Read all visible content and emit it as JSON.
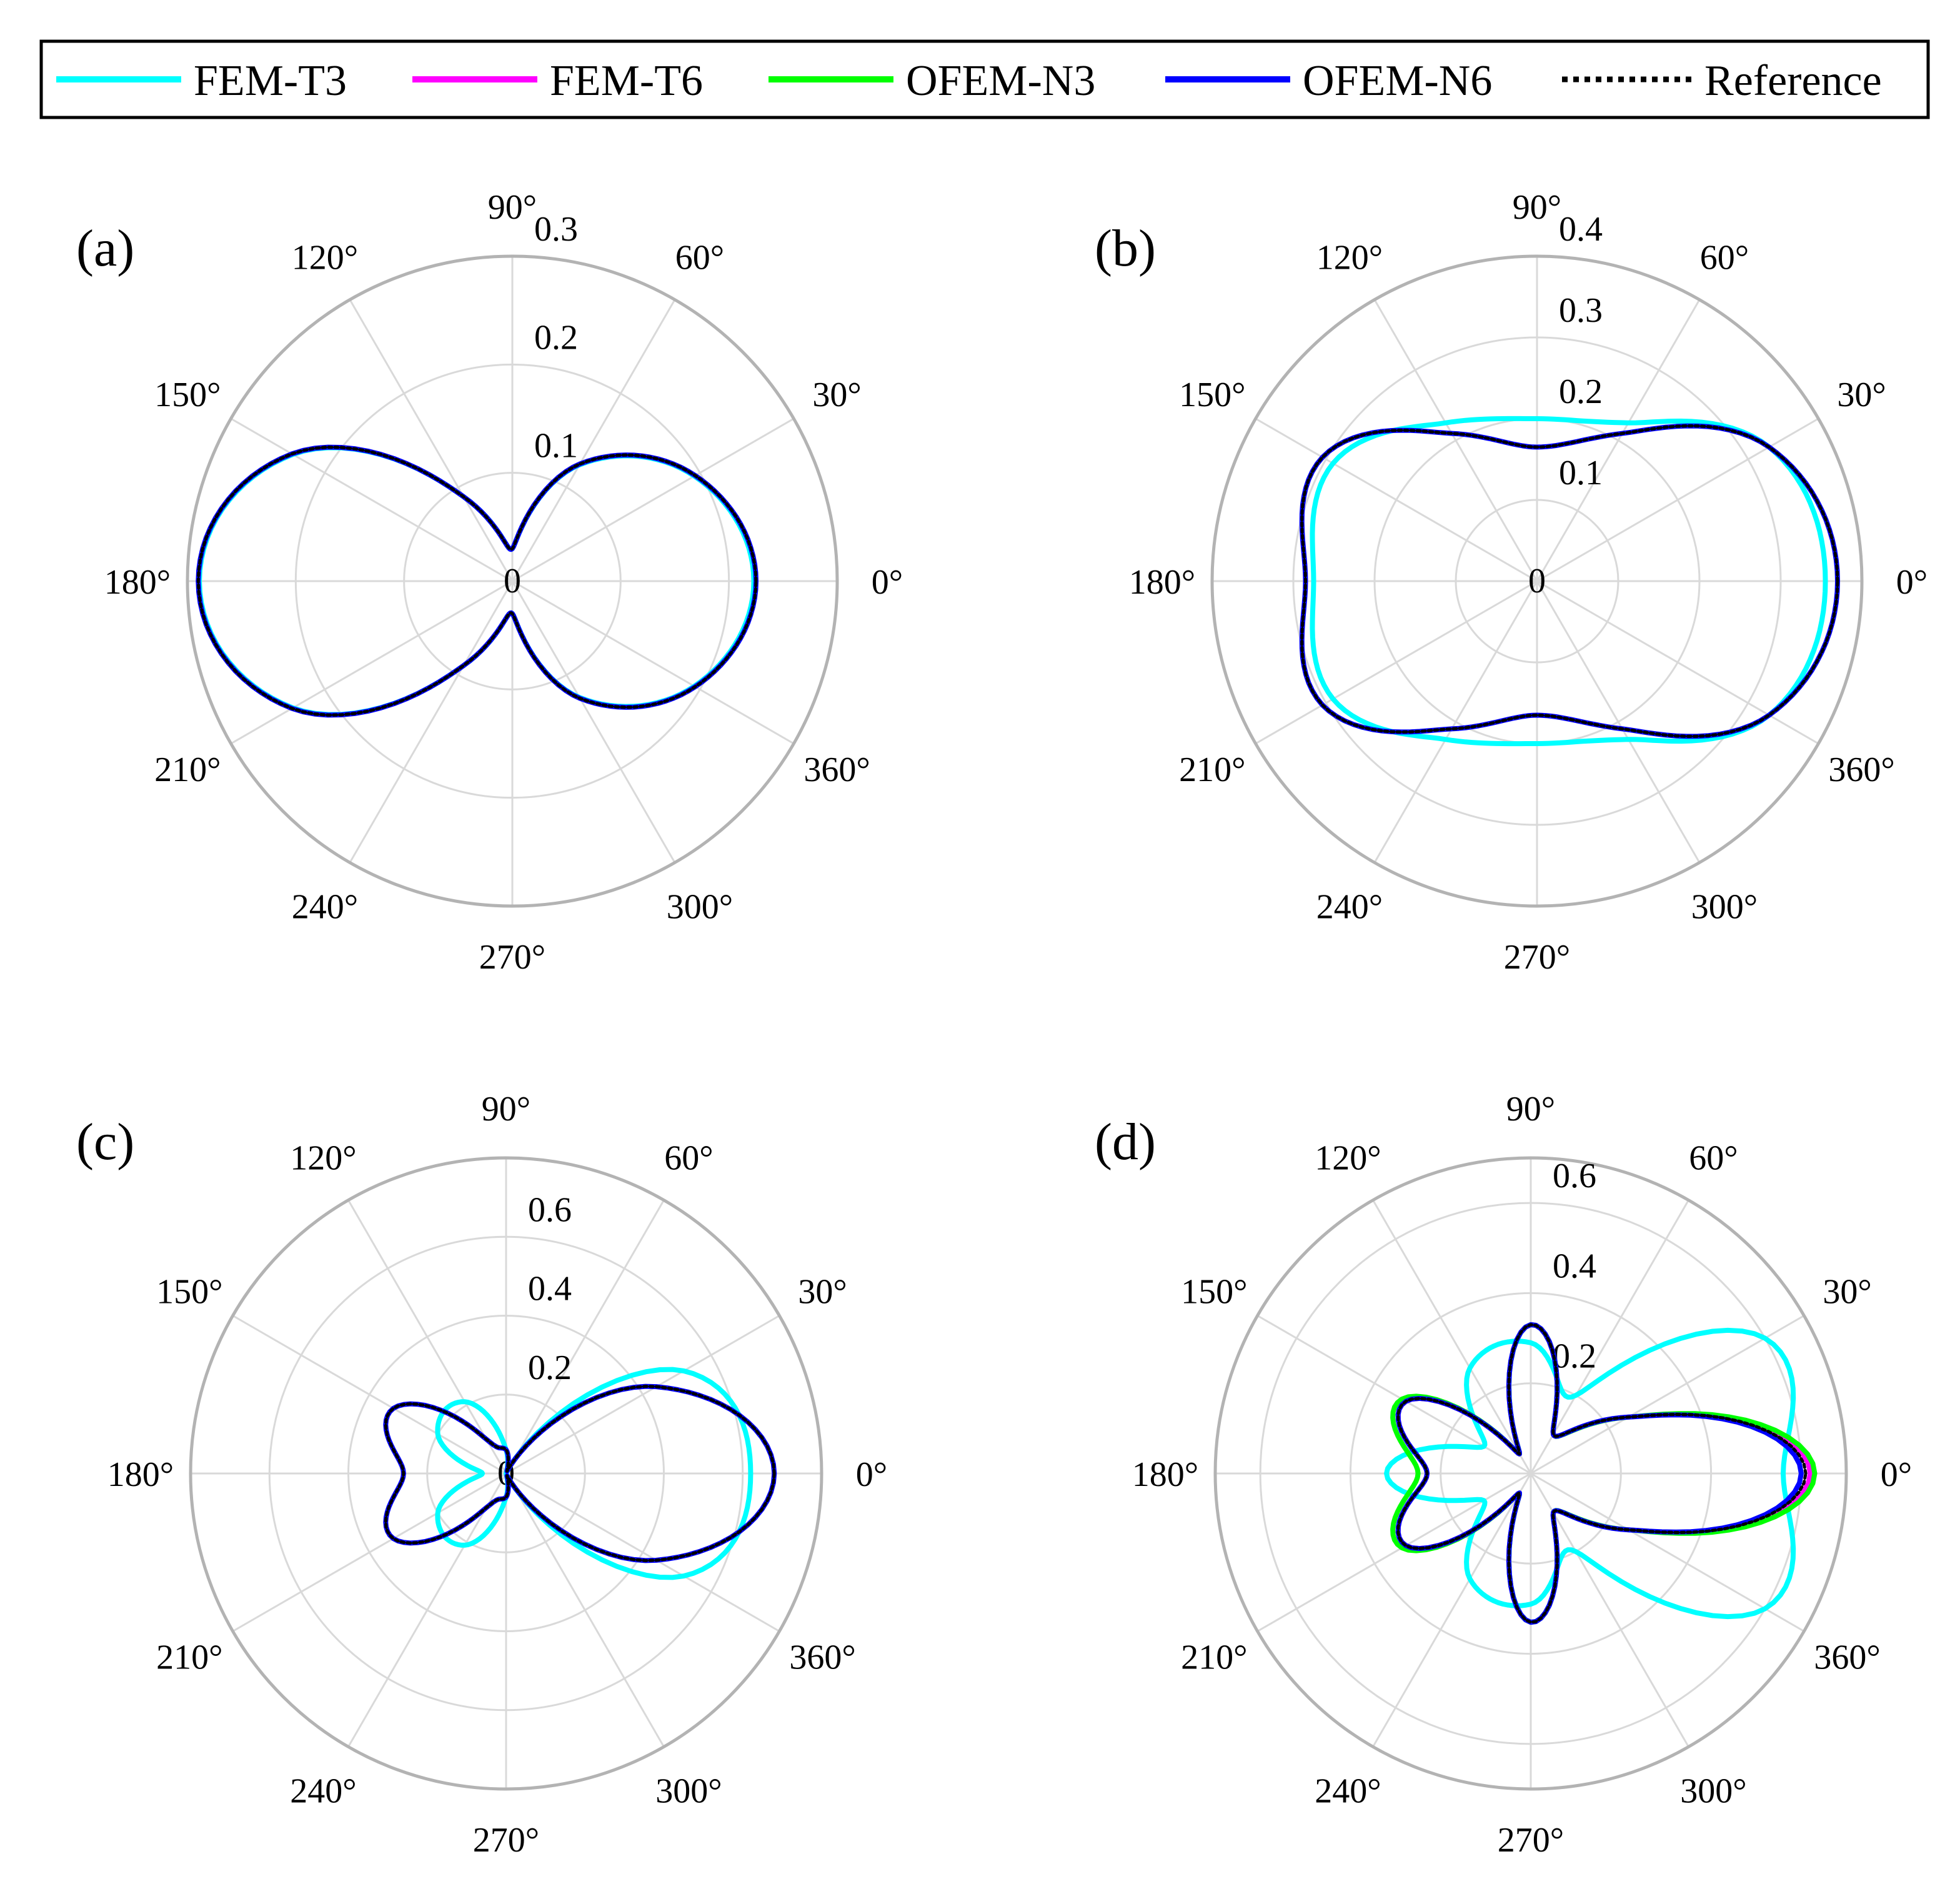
{
  "legend": {
    "entries": [
      {
        "name": "FEM-T3",
        "color": "#00ffff",
        "style": "solid"
      },
      {
        "name": "FEM-T6",
        "color": "#ff00ff",
        "style": "solid"
      },
      {
        "name": "OFEM-N3",
        "color": "#00ff00",
        "style": "solid"
      },
      {
        "name": "OFEM-N6",
        "color": "#0000ff",
        "style": "solid"
      },
      {
        "name": "Reference",
        "color": "#000000",
        "style": "dotted"
      }
    ]
  },
  "chart_data": [
    {
      "type": "polar",
      "panel_label": "(a)",
      "rmax": 0.3,
      "rticks": [
        0,
        0.1,
        0.2,
        0.3
      ],
      "rtick_labels": [
        "0",
        "0.1",
        "0.2",
        "0.3"
      ],
      "angle_labels": [
        "0°",
        "30°",
        "60°",
        "90°",
        "120°",
        "150°",
        "180°",
        "210°",
        "240°",
        "270°",
        "300°",
        "360°"
      ],
      "series": [
        {
          "name": "Reference",
          "values": [
            0.225,
            0.195,
            0.125,
            0.03,
            0.09,
            0.235,
            0.29,
            0.235,
            0.09,
            0.03,
            0.125,
            0.195
          ]
        },
        {
          "name": "FEM-T3",
          "values": [
            0.223,
            0.194,
            0.124,
            0.03,
            0.09,
            0.234,
            0.289,
            0.234,
            0.09,
            0.03,
            0.124,
            0.194
          ]
        },
        {
          "name": "OFEM-N6",
          "values": [
            0.225,
            0.195,
            0.125,
            0.03,
            0.09,
            0.235,
            0.29,
            0.235,
            0.09,
            0.03,
            0.125,
            0.195
          ]
        }
      ]
    },
    {
      "type": "polar",
      "panel_label": "(b)",
      "rmax": 0.4,
      "rticks": [
        0,
        0.1,
        0.2,
        0.3,
        0.4
      ],
      "rtick_labels": [
        "0",
        "0.1",
        "0.2",
        "0.3",
        "0.4"
      ],
      "angle_labels": [
        "0°",
        "30°",
        "60°",
        "90°",
        "120°",
        "150°",
        "180°",
        "210°",
        "240°",
        "270°",
        "300°",
        "360°"
      ],
      "series": [
        {
          "name": "Reference",
          "values": [
            0.37,
            0.33,
            0.21,
            0.165,
            0.21,
            0.305,
            0.285,
            0.305,
            0.21,
            0.165,
            0.21,
            0.33
          ]
        },
        {
          "name": "FEM-T3",
          "values": [
            0.355,
            0.33,
            0.225,
            0.2,
            0.225,
            0.29,
            0.275,
            0.29,
            0.225,
            0.2,
            0.225,
            0.33
          ]
        },
        {
          "name": "OFEM-N6",
          "values": [
            0.37,
            0.33,
            0.21,
            0.165,
            0.21,
            0.305,
            0.285,
            0.305,
            0.21,
            0.165,
            0.21,
            0.33
          ]
        }
      ]
    },
    {
      "type": "polar",
      "panel_label": "(c)",
      "rmax": 0.8,
      "rticks": [
        0,
        0.2,
        0.4,
        0.6,
        0.8
      ],
      "rtick_labels": [
        "0",
        "0.2",
        "0.4",
        "0.6"
      ],
      "angle_labels": [
        "0°",
        "30°",
        "60°",
        "90°",
        "120°",
        "150°",
        "180°",
        "210°",
        "240°",
        "270°",
        "300°",
        "360°"
      ],
      "series": [
        {
          "name": "Reference",
          "values": [
            0.68,
            0.44,
            0.03,
            0.06,
            0.1,
            0.33,
            0.26,
            0.33,
            0.1,
            0.06,
            0.03,
            0.44
          ]
        },
        {
          "name": "FEM-T3",
          "values": [
            0.62,
            0.52,
            0.03,
            0.06,
            0.21,
            0.2,
            0.06,
            0.2,
            0.21,
            0.06,
            0.03,
            0.52
          ]
        },
        {
          "name": "OFEM-N6",
          "values": [
            0.68,
            0.44,
            0.03,
            0.06,
            0.1,
            0.33,
            0.26,
            0.33,
            0.1,
            0.06,
            0.03,
            0.44
          ]
        }
      ]
    },
    {
      "type": "polar",
      "panel_label": "(d)",
      "rmax": 0.7,
      "rticks": [
        0,
        0.2,
        0.4,
        0.6
      ],
      "rtick_labels": [
        "0.2",
        "0.4",
        "0.6"
      ],
      "angle_labels": [
        "0°",
        "30°",
        "60°",
        "90°",
        "120°",
        "150°",
        "180°",
        "210°",
        "240°",
        "270°",
        "300°",
        "360°"
      ],
      "series": [
        {
          "name": "Reference",
          "values": [
            0.61,
            0.25,
            0.1,
            0.33,
            0.05,
            0.32,
            0.23,
            0.32,
            0.05,
            0.33,
            0.1,
            0.25
          ]
        },
        {
          "name": "FEM-T3",
          "values": [
            0.56,
            0.6,
            0.2,
            0.29,
            0.27,
            0.12,
            0.32,
            0.12,
            0.27,
            0.29,
            0.2,
            0.6
          ]
        },
        {
          "name": "OFEM-N3",
          "values": [
            0.63,
            0.25,
            0.1,
            0.33,
            0.05,
            0.33,
            0.25,
            0.33,
            0.05,
            0.33,
            0.1,
            0.25
          ]
        },
        {
          "name": "OFEM-N6",
          "values": [
            0.6,
            0.25,
            0.1,
            0.33,
            0.05,
            0.32,
            0.23,
            0.32,
            0.05,
            0.33,
            0.1,
            0.25
          ]
        },
        {
          "name": "FEM-T6",
          "values": [
            0.62,
            0.25,
            0.1,
            0.33,
            0.05,
            0.32,
            0.23,
            0.32,
            0.05,
            0.33,
            0.1,
            0.25
          ]
        }
      ]
    }
  ]
}
